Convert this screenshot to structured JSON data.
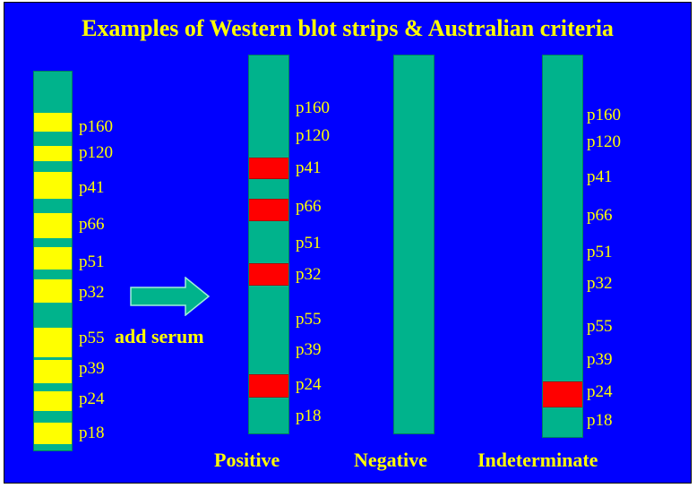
{
  "title": "Examples of Western blot strips & Australian criteria",
  "add_serum": "add serum",
  "colors": {
    "background": "#0000ff",
    "text": "#ffff00",
    "strip": "#00b38c",
    "band_yellow": "#ffff00",
    "band_red": "#ff0000",
    "arrow": "#00b38c"
  },
  "reference_strip": {
    "labels": [
      "p160",
      "p120",
      "p41",
      "p66",
      "p51",
      "p32",
      "p55",
      "p39",
      "p24",
      "p18"
    ]
  },
  "positive_strip": {
    "caption": "Positive",
    "labels": [
      "p160",
      "p120",
      "p41",
      "p66",
      "p51",
      "p32",
      "p55",
      "p39",
      "p24",
      "p18"
    ],
    "reactive_bands": [
      "p41",
      "p66",
      "p32",
      "p24"
    ]
  },
  "negative_strip": {
    "caption": "Negative",
    "labels": [],
    "reactive_bands": []
  },
  "indeterminate_strip": {
    "caption": "Indeterminate",
    "labels": [
      "p160",
      "p120",
      "p41",
      "p66",
      "p51",
      "p32",
      "p55",
      "p39",
      "p24",
      "p18"
    ],
    "reactive_bands": [
      "p24"
    ]
  }
}
